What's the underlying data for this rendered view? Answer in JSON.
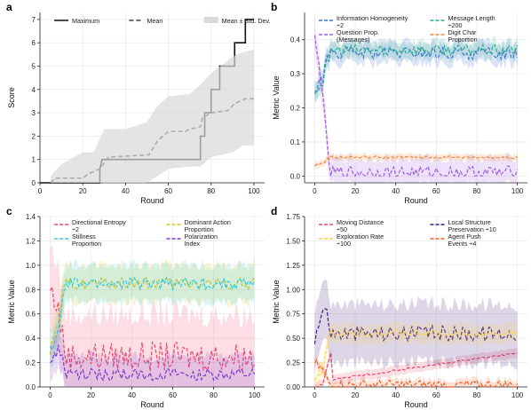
{
  "chart_data": [
    {
      "panel": "a",
      "type": "line",
      "xlabel": "Round",
      "ylabel": "Score",
      "xlim": [
        0,
        105
      ],
      "ylim": [
        0,
        7.3
      ],
      "xticks": [
        0,
        20,
        40,
        60,
        80,
        100
      ],
      "yticks": [
        0,
        1,
        2,
        3,
        4,
        5,
        6,
        7
      ],
      "grid": true,
      "legend_position": "top",
      "series": [
        {
          "name": "Maximum",
          "style": "solid",
          "color": "#111111",
          "points": [
            [
              0,
              0
            ],
            [
              28,
              0
            ],
            [
              28,
              0.6
            ],
            [
              29,
              1
            ],
            [
              60,
              1
            ],
            [
              75,
              1
            ],
            [
              75,
              2
            ],
            [
              77,
              2
            ],
            [
              77,
              3
            ],
            [
              80,
              3
            ],
            [
              80,
              4
            ],
            [
              84,
              4
            ],
            [
              84,
              5
            ],
            [
              91,
              5
            ],
            [
              91,
              6
            ],
            [
              96,
              6
            ],
            [
              96,
              7
            ],
            [
              100,
              7
            ]
          ]
        },
        {
          "name": "Mean",
          "style": "dashed",
          "color": "#444444",
          "points": [
            [
              5,
              0
            ],
            [
              7,
              0.2
            ],
            [
              20,
              0.2
            ],
            [
              23,
              0.4
            ],
            [
              28,
              0.6
            ],
            [
              32,
              1.1
            ],
            [
              51,
              1.2
            ],
            [
              55,
              1.8
            ],
            [
              60,
              2.2
            ],
            [
              68,
              2.2
            ],
            [
              70,
              2.3
            ],
            [
              75,
              2.4
            ],
            [
              76,
              2.8
            ],
            [
              80,
              3
            ],
            [
              88,
              3.1
            ],
            [
              91,
              3.4
            ],
            [
              96,
              3.6
            ],
            [
              100,
              3.6
            ]
          ]
        },
        {
          "name": "Mean ± Std. Dev.",
          "style": "band",
          "color": "#d9d9d9",
          "x": [
            5,
            10,
            20,
            25,
            30,
            40,
            50,
            55,
            60,
            70,
            75,
            80,
            90,
            95,
            100
          ],
          "upper": [
            0.3,
            0.8,
            1.3,
            1.3,
            2.3,
            2.3,
            2.6,
            3.3,
            3.7,
            3.8,
            4.2,
            4.7,
            5.4,
            5.6,
            5.7
          ],
          "lower": [
            0,
            0,
            0,
            0,
            0,
            0,
            0,
            0.3,
            0.6,
            0.7,
            0.7,
            1.1,
            1.3,
            1.6,
            1.6
          ]
        }
      ]
    },
    {
      "panel": "b",
      "type": "line",
      "xlabel": "Round",
      "ylabel": "Metric Value",
      "xlim": [
        -5,
        105
      ],
      "ylim": [
        -0.02,
        0.48
      ],
      "xticks": [
        0,
        20,
        40,
        60,
        80,
        100
      ],
      "yticks": [
        0.0,
        0.1,
        0.2,
        0.3,
        0.4
      ],
      "grid": true,
      "legend_position": "top",
      "series": [
        {
          "name": "Information Homogeneity ÷2",
          "color": "#3f6fd8",
          "start": [
            0.25,
            0.33
          ],
          "level": 0.36,
          "noise": 0.018,
          "band": 0.03
        },
        {
          "name": "Message Length ÷200",
          "color": "#2bab8c",
          "start": [
            0.25,
            0.3
          ],
          "level": 0.37,
          "noise": 0.015,
          "band": 0.025
        },
        {
          "name": "Question Prop. (Messages)",
          "color": "#9b5de5",
          "start": [
            0.4,
            0.1
          ],
          "level": 0.01,
          "noise": 0.02,
          "band": 0.04
        },
        {
          "name": "Digit Char Proportion",
          "color": "#f0883e",
          "start": [
            0.03,
            0.045
          ],
          "level": 0.055,
          "noise": 0.004,
          "band": 0.01
        }
      ]
    },
    {
      "panel": "c",
      "type": "line",
      "xlabel": "Round",
      "ylabel": "Metric Value",
      "xlim": [
        -5,
        105
      ],
      "ylim": [
        0,
        1.4
      ],
      "xticks": [
        0,
        20,
        40,
        60,
        80,
        100
      ],
      "yticks": [
        0.0,
        0.2,
        0.4,
        0.6,
        0.8,
        1.0,
        1.2,
        1.4
      ],
      "grid": true,
      "legend_position": "top",
      "series": [
        {
          "name": "Directional Entropy ÷2",
          "color": "#ef4a6b",
          "start": [
            0.8,
            0.5
          ],
          "level": 0.25,
          "noise": 0.12,
          "band": 0.35
        },
        {
          "name": "Dominant Action Proportion",
          "color": "#d9c21f",
          "start": [
            0.3,
            0.7
          ],
          "level": 0.85,
          "noise": 0.05,
          "band": 0.15
        },
        {
          "name": "Stillness Proportion",
          "color": "#35cbd8",
          "start": [
            0.3,
            0.6
          ],
          "level": 0.85,
          "noise": 0.05,
          "band": 0.15
        },
        {
          "name": "Polarization Index",
          "color": "#7b35d0",
          "start": [
            0.2,
            0.4
          ],
          "level": 0.1,
          "noise": 0.05,
          "band": 0.15
        }
      ]
    },
    {
      "panel": "d",
      "type": "line",
      "xlabel": "Round",
      "ylabel": "Metric Value",
      "xlim": [
        -5,
        105
      ],
      "ylim": [
        0,
        1.75
      ],
      "xticks": [
        0,
        20,
        40,
        60,
        80,
        100
      ],
      "yticks": [
        0.0,
        0.25,
        0.5,
        0.75,
        1.0,
        1.25,
        1.5,
        1.75
      ],
      "grid": true,
      "legend_position": "top",
      "series": [
        {
          "name": "Moving Distance ÷50",
          "color": "#e84b6a",
          "start": [
            0.0,
            0.05
          ],
          "level": 0.35,
          "trend": true,
          "noise": 0.01,
          "band": 0.05
        },
        {
          "name": "Local Structure Preservation ÷10",
          "color": "#3b1b78",
          "start": [
            0.5,
            1.1
          ],
          "level": 0.55,
          "noise": 0.08,
          "band": 0.3
        },
        {
          "name": "Exploration Rate ÷100",
          "color": "#ffd34d",
          "start": [
            0.05,
            0.3
          ],
          "level": 0.55,
          "noise": 0.03,
          "band": 0.1
        },
        {
          "name": "Agent Push Events ÷4",
          "color": "#f25c1f",
          "start": [
            0.25,
            0.1
          ],
          "level": 0.02,
          "noise": 0.05,
          "band": 0.05
        }
      ]
    }
  ]
}
